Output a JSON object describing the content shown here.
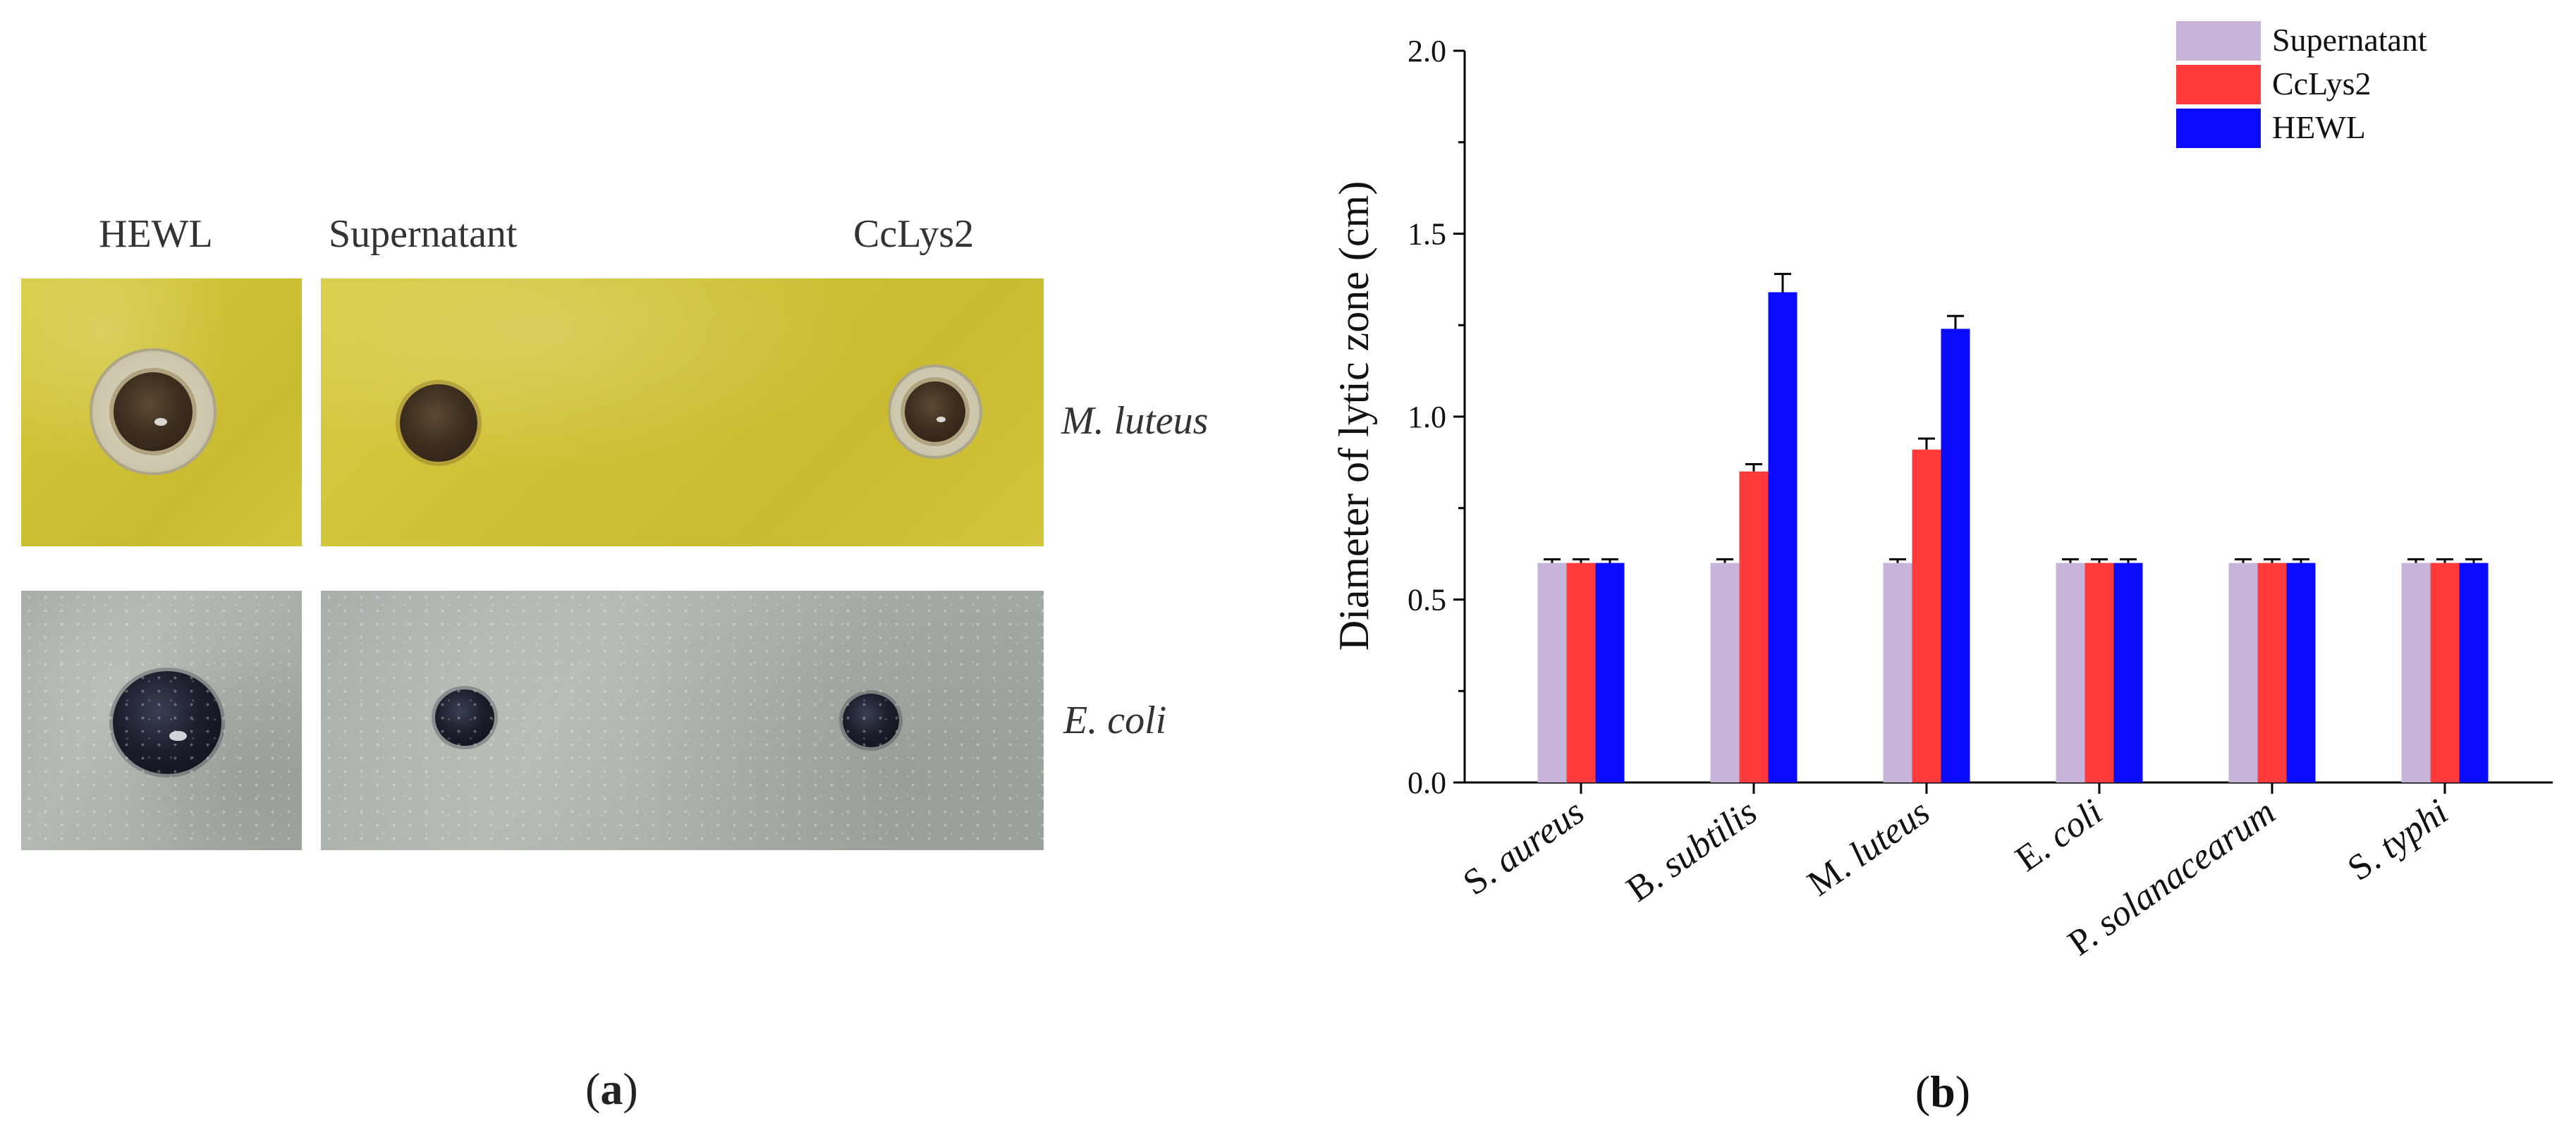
{
  "panel_a": {
    "caption": "a",
    "columns": [
      "HEWL",
      "Supernatant",
      "CcLys2"
    ],
    "rows": [
      "M. luteus",
      "E. coli"
    ]
  },
  "panel_b": {
    "caption": "b"
  },
  "chart_data": {
    "type": "bar",
    "title": "",
    "xlabel": "",
    "ylabel": "Diameter of lytic zone (cm)",
    "ylim": [
      0.0,
      2.0
    ],
    "yticks": [
      "0.0",
      "0.5",
      "1.0",
      "1.5",
      "2.0"
    ],
    "categories": [
      "S. aureus",
      "B. subtilis",
      "M. luteus",
      "E. coli",
      "P. solanacearum",
      "S. typhi"
    ],
    "category_parts": [
      {
        "prefix": "S. ",
        "italic": "aureus"
      },
      {
        "prefix": "B. ",
        "italic": "subtilis"
      },
      {
        "prefix": "M. ",
        "italic": "luteus"
      },
      {
        "prefix": "E. ",
        "italic": "coli"
      },
      {
        "prefix": "P. ",
        "italic": "solanacearum"
      },
      {
        "prefix": "S. ",
        "italic": "typhi"
      }
    ],
    "series": [
      {
        "name": "Supernatant",
        "color": "#c8b4d8",
        "values": [
          0.6,
          0.6,
          0.6,
          0.6,
          0.6,
          0.6
        ],
        "errors": [
          0.01,
          0.01,
          0.01,
          0.01,
          0.01,
          0.01
        ]
      },
      {
        "name": "CcLys2",
        "color": "#ff3b3b",
        "values": [
          0.6,
          0.85,
          0.91,
          0.6,
          0.6,
          0.6
        ],
        "errors": [
          0.01,
          0.02,
          0.03,
          0.01,
          0.01,
          0.01
        ]
      },
      {
        "name": "HEWL",
        "color": "#0a0aff",
        "values": [
          0.6,
          1.34,
          1.24,
          0.6,
          0.6,
          0.6
        ],
        "errors": [
          0.01,
          0.05,
          0.035,
          0.01,
          0.01,
          0.01
        ]
      }
    ],
    "legend_position": "top-right",
    "grid": false
  }
}
